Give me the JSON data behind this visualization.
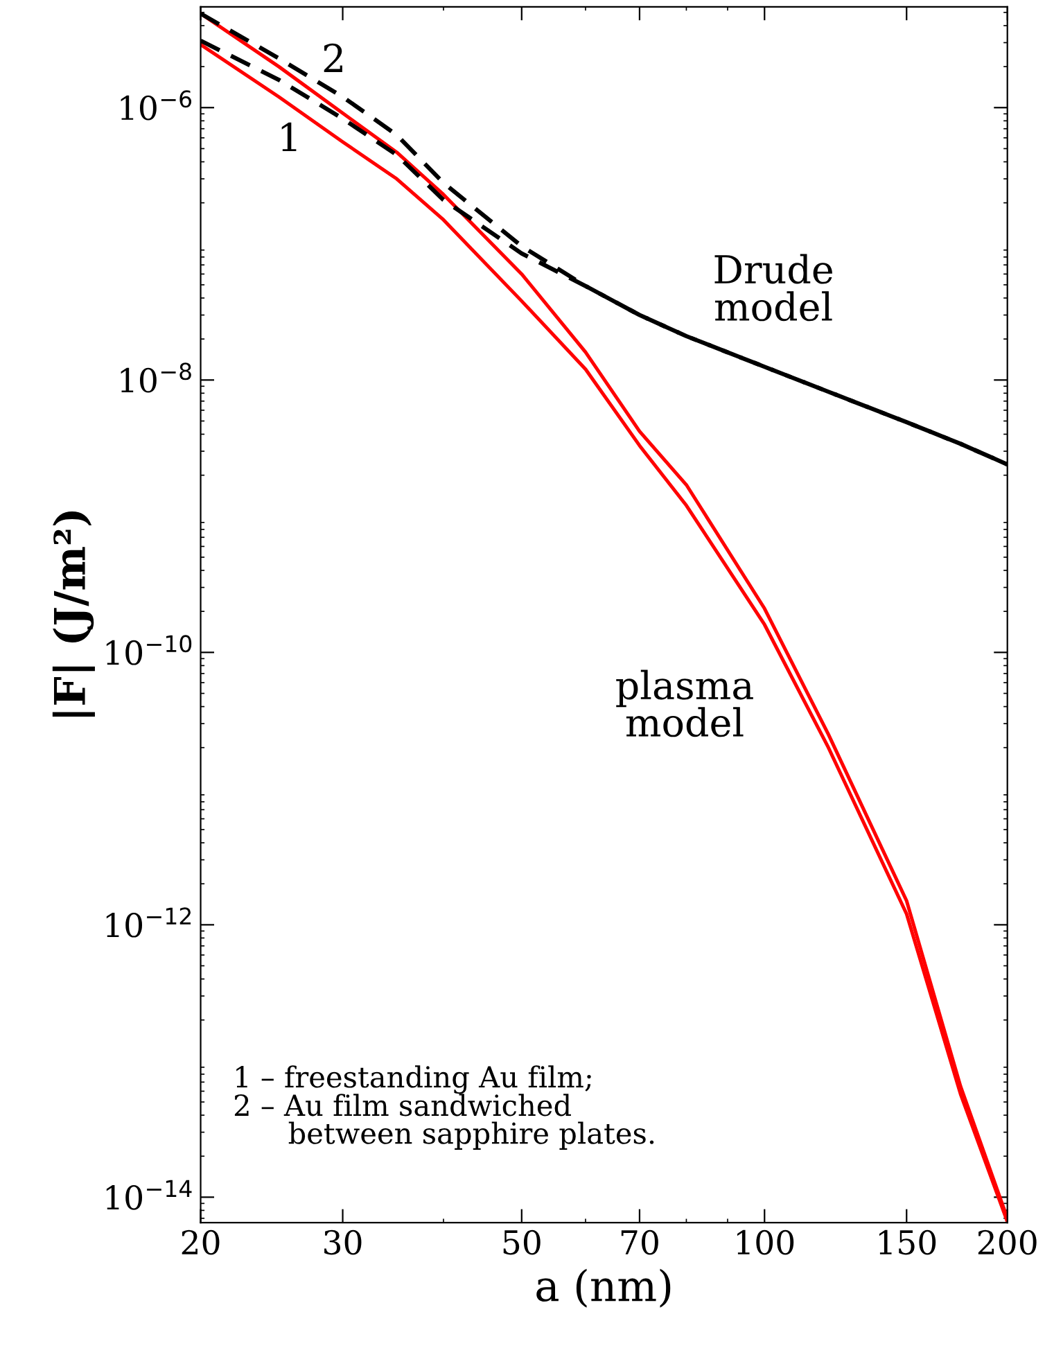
{
  "chart_data": {
    "type": "line",
    "xlabel": "a (nm)",
    "ylabel": "|F| (J/m²)",
    "log": "xy",
    "x": [
      20,
      25,
      30,
      35,
      40,
      50,
      60,
      70,
      80,
      100,
      120,
      150,
      175,
      200
    ],
    "series": [
      {
        "color": "#ff0000",
        "line_style": "solid",
        "values": [
          4.9e-06,
          2e-06,
          9.1e-07,
          4.7e-07,
          2.3e-07,
          6e-08,
          1.6e-08,
          4.2e-09,
          1.7e-09,
          2.1e-10,
          2.5e-11,
          1.5e-12,
          6.5e-14,
          7e-15
        ]
      },
      {
        "color": "#ff0000",
        "line_style": "solid",
        "values": [
          2.9e-06,
          1.2e-06,
          5.6e-07,
          3e-07,
          1.5e-07,
          3.8e-08,
          1.2e-08,
          3.3e-09,
          1.2e-09,
          1.6e-10,
          2e-11,
          1.2e-12,
          5.7e-14,
          6.6e-15
        ]
      },
      {
        "color": "#000000",
        "line_style": "dashed",
        "values": [
          4.9e-06,
          2.3e-06,
          1.2e-06,
          6.3e-07,
          2.8e-07,
          9.6e-08,
          4.9e-08,
          3e-08,
          2.1e-08,
          1.25e-08,
          8.2e-09,
          4.9e-09,
          3.4e-09,
          2.4e-09
        ]
      },
      {
        "color": "#000000",
        "line_style": "dashed",
        "values": [
          3.1e-06,
          1.6e-06,
          8.3e-07,
          4.5e-07,
          2.1e-07,
          8.5e-08,
          4.9e-08,
          3e-08,
          2.1e-08,
          1.25e-08,
          8.2e-09,
          4.9e-09,
          3.4e-09,
          2.4e-09
        ]
      }
    ],
    "xlim": [
      20,
      200
    ],
    "xticks": [
      20,
      30,
      50,
      70,
      100,
      150,
      200
    ],
    "ylim": [
      6.5e-15,
      5.5e-06
    ],
    "yticks": [
      {
        "value": 1e-14,
        "label": "10$^{−14}$"
      },
      {
        "value": 1e-12,
        "label": "10$^{−12}$"
      },
      {
        "value": 1e-10,
        "label": "10$^{−10}$"
      },
      {
        "value": 1e-08,
        "label": "10$^{−8}$"
      },
      {
        "value": 1e-06,
        "label": "10$^{−6}$"
      }
    ],
    "grid": false,
    "legend": false,
    "annotations": [
      "1",
      "2",
      "Drude\nmodel",
      "plasma\nmodel",
      "1 – freestanding Au film;\n2 – Au film sandwiched\n      between sapphire plates."
    ]
  }
}
